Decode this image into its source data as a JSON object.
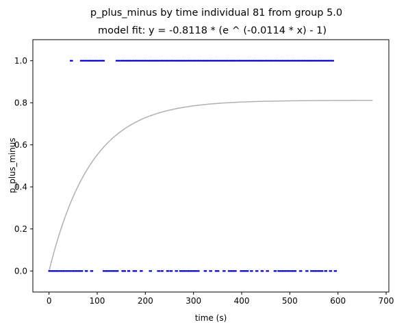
{
  "chart_data": {
    "type": "scatter",
    "title": "p_plus_minus by time individual 81 from group 5.0",
    "subtitle": "model fit: y = -0.8118 * (e ^ (-0.0114 * x) - 1)",
    "xlabel": "time (s)",
    "ylabel": "p_plus_minus",
    "xlim": [
      -33.6,
      705.6
    ],
    "ylim": [
      -0.1,
      1.1
    ],
    "xticks": [
      0,
      100,
      200,
      300,
      400,
      500,
      600,
      700
    ],
    "yticks": [
      0.0,
      0.2,
      0.4,
      0.6,
      0.8,
      1.0
    ],
    "xtick_labels": [
      "0",
      "100",
      "200",
      "300",
      "400",
      "500",
      "600",
      "700"
    ],
    "ytick_labels": [
      "0.0",
      "0.2",
      "0.4",
      "0.6",
      "0.8",
      "1.0"
    ],
    "grid": false,
    "legend": "none",
    "colors": {
      "points": "#0000cc",
      "fit": "#b0b0b0"
    },
    "series": [
      {
        "kind": "points",
        "segments_y1": [
          [
            45,
            49
          ],
          [
            66,
            115
          ],
          [
            140,
            590
          ]
        ],
        "segments_y0": [
          [
            0,
            70
          ],
          [
            76,
            80
          ],
          [
            87,
            90
          ],
          [
            113,
            143
          ],
          [
            152,
            158
          ],
          [
            164,
            168
          ],
          [
            175,
            183
          ],
          [
            190,
            193
          ],
          [
            209,
            212
          ],
          [
            226,
            229
          ],
          [
            233,
            238
          ],
          [
            245,
            248
          ],
          [
            252,
            257
          ],
          [
            263,
            267
          ],
          [
            272,
            312
          ],
          [
            323,
            327
          ],
          [
            334,
            338
          ],
          [
            346,
            353
          ],
          [
            362,
            366
          ],
          [
            373,
            389
          ],
          [
            398,
            413
          ],
          [
            419,
            422
          ],
          [
            430,
            434
          ],
          [
            441,
            445
          ],
          [
            452,
            457
          ],
          [
            468,
            472
          ],
          [
            476,
            512
          ],
          [
            521,
            525
          ],
          [
            534,
            537
          ],
          [
            544,
            568
          ],
          [
            573,
            577
          ],
          [
            583,
            587
          ],
          [
            593,
            598
          ]
        ],
        "step": 3
      },
      {
        "kind": "fit",
        "a": 0.8118,
        "k": 0.0114,
        "x_range": [
          0,
          672
        ]
      }
    ]
  }
}
